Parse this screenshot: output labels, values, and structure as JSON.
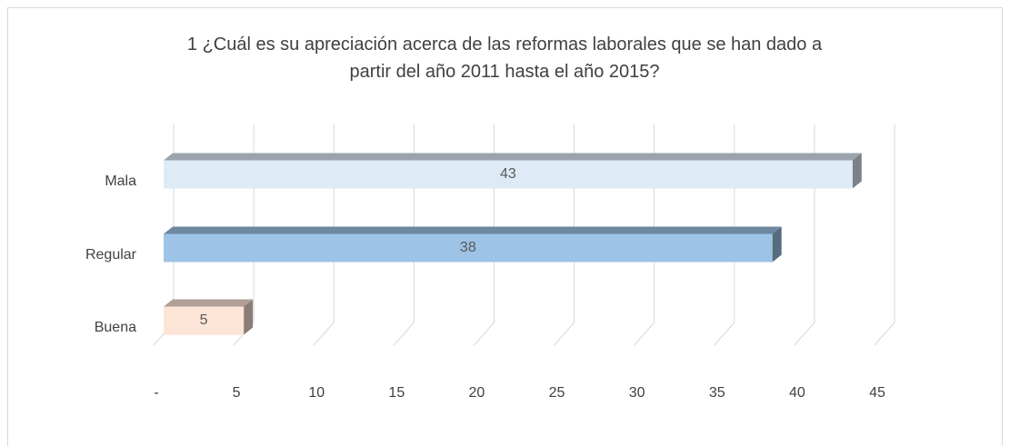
{
  "chart_data": {
    "type": "bar3d_horizontal",
    "title": "1 ¿Cuál es su apreciación acerca de las reformas laborales que se han dado a partir del año 2011 hasta el año 2015?",
    "categories": [
      "Mala",
      "Regular",
      "Buena"
    ],
    "values": [
      43,
      38,
      5
    ],
    "colors": [
      "#deebf7",
      "#9dc3e6",
      "#fce4d6"
    ],
    "xlim": [
      0,
      45
    ],
    "xticks": [
      {
        "value": 0,
        "label": "-"
      },
      5,
      10,
      15,
      20,
      25,
      30,
      35,
      40,
      45
    ],
    "grid": true
  }
}
